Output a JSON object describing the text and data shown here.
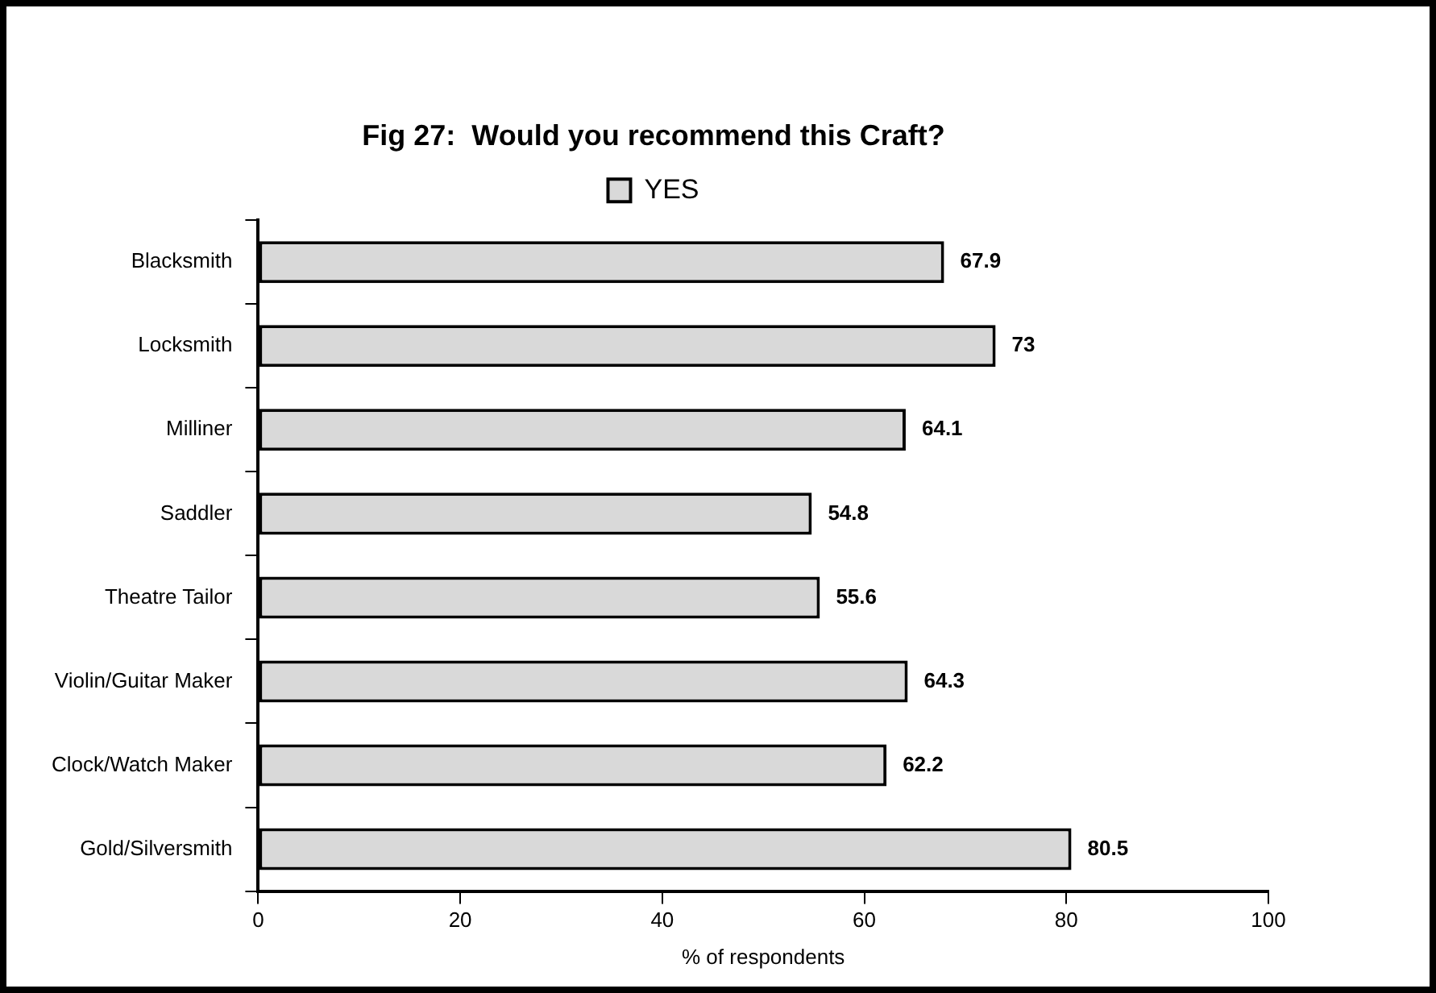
{
  "chart_data": {
    "type": "bar",
    "orientation": "horizontal",
    "title": "Fig 27:  Would you recommend this Craft?",
    "xlabel": "% of respondents",
    "categories": [
      "Blacksmith",
      "Locksmith",
      "Milliner",
      "Saddler",
      "Theatre Tailor",
      "Violin/Guitar Maker",
      "Clock/Watch Maker",
      "Gold/Silversmith"
    ],
    "series": [
      {
        "name": "YES",
        "color": "#d9d9d9",
        "values": [
          67.9,
          73,
          64.1,
          54.8,
          55.6,
          64.3,
          62.2,
          80.5
        ]
      }
    ],
    "xlim": [
      0,
      100
    ],
    "xticks": [
      0,
      20,
      40,
      60,
      80,
      100
    ],
    "grid": false,
    "legend": "top",
    "data_labels": true
  }
}
